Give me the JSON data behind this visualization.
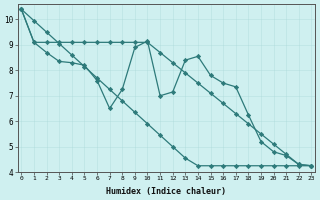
{
  "xlabel": "Humidex (Indice chaleur)",
  "x_values": [
    0,
    1,
    2,
    3,
    4,
    5,
    6,
    7,
    8,
    9,
    10,
    11,
    12,
    13,
    14,
    15,
    16,
    17,
    18,
    19,
    20,
    21,
    22,
    23
  ],
  "line1_y": [
    10.4,
    9.1,
    8.7,
    8.35,
    8.3,
    8.2,
    7.6,
    6.5,
    7.25,
    8.9,
    9.15,
    7.0,
    7.15,
    8.4,
    8.55,
    7.8,
    7.5,
    7.35,
    6.25,
    5.2,
    4.8,
    4.65,
    4.3,
    4.25
  ],
  "line2_y": [
    10.4,
    9.95,
    9.5,
    9.05,
    8.6,
    8.15,
    7.7,
    7.25,
    6.8,
    6.35,
    5.9,
    5.45,
    5.0,
    4.55,
    4.25,
    4.25,
    4.25,
    4.25,
    4.25,
    4.25,
    4.25,
    4.25,
    4.25,
    4.25
  ],
  "line3_y": [
    10.4,
    9.1,
    9.1,
    9.1,
    9.1,
    9.1,
    9.1,
    9.1,
    9.1,
    9.1,
    9.1,
    8.7,
    8.3,
    7.9,
    7.5,
    7.1,
    6.7,
    6.3,
    5.9,
    5.5,
    5.1,
    4.7,
    4.3,
    4.25
  ],
  "line_color": "#2d7a7a",
  "bg_color": "#cff0f0",
  "grid_color": "#a8d8d8",
  "grid_color2": "#d08080",
  "ylim": [
    4,
    10.6
  ],
  "xlim": [
    -0.3,
    23.3
  ],
  "yticks": [
    4,
    5,
    6,
    7,
    8,
    9,
    10
  ],
  "xticks": [
    0,
    1,
    2,
    3,
    4,
    5,
    6,
    7,
    8,
    9,
    10,
    11,
    12,
    13,
    14,
    15,
    16,
    17,
    18,
    19,
    20,
    21,
    22,
    23
  ]
}
